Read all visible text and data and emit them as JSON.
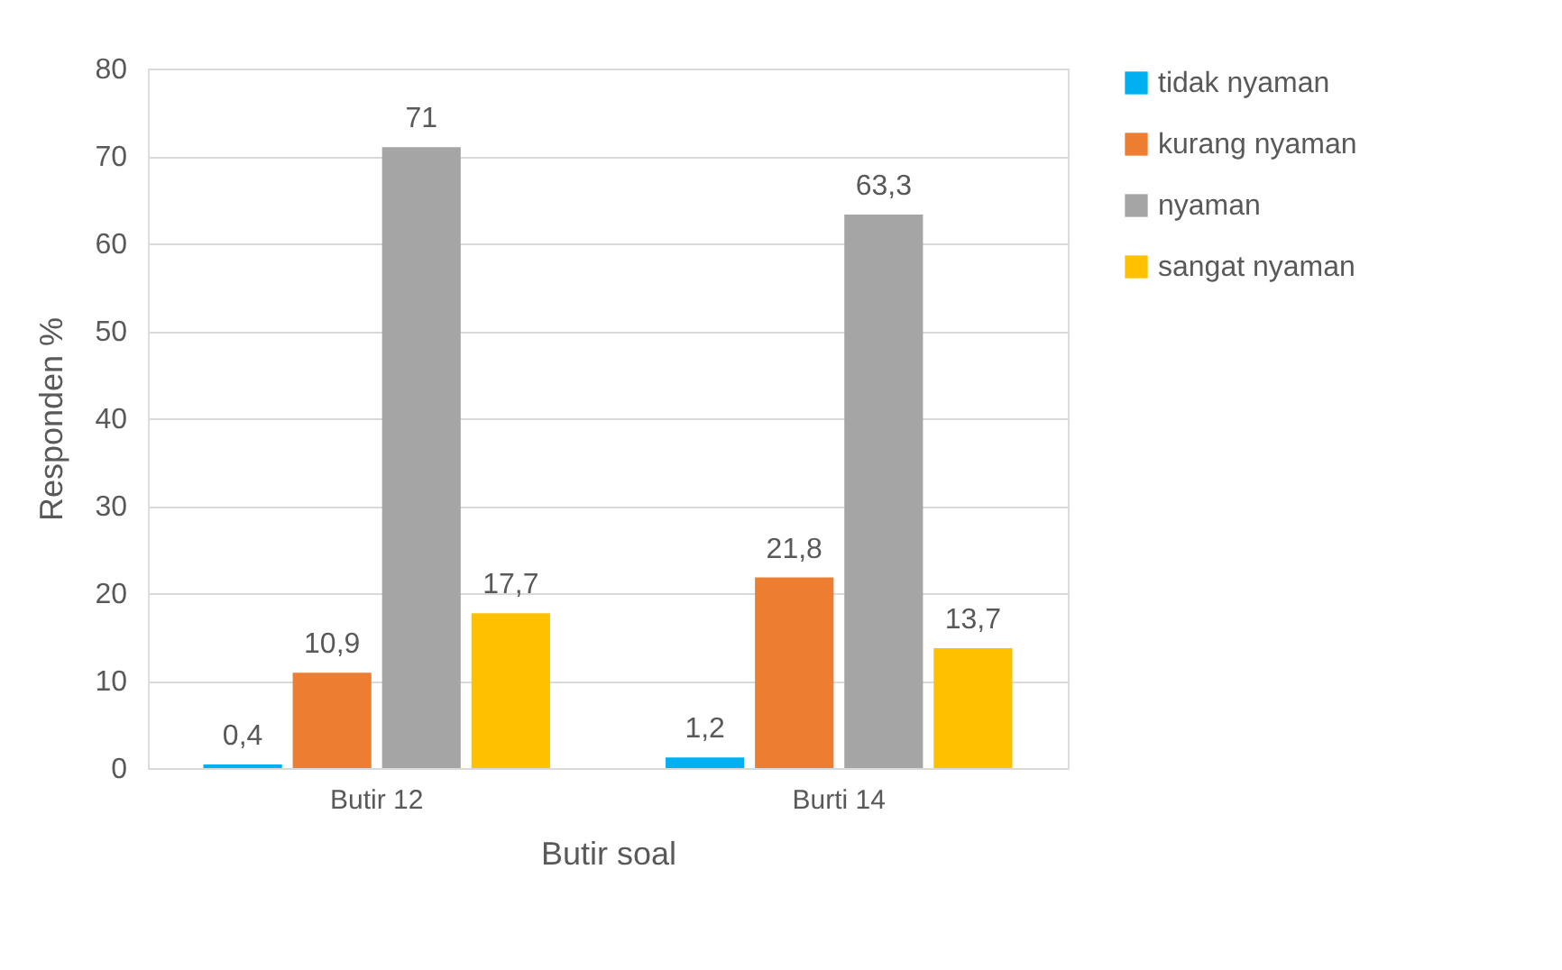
{
  "chart_data": {
    "type": "bar",
    "xlabel": "Butir soal",
    "ylabel": "Responden %",
    "categories": [
      "Butir 12",
      "Burti 14"
    ],
    "series": [
      {
        "name": "tidak nyaman",
        "color": "#00b0f0",
        "values": [
          0.4,
          1.2
        ],
        "value_labels": [
          "0,4",
          "1,2"
        ]
      },
      {
        "name": "kurang nyaman",
        "color": "#ed7d31",
        "values": [
          10.9,
          21.8
        ],
        "value_labels": [
          "10,9",
          "21,8"
        ]
      },
      {
        "name": "nyaman",
        "color": "#a5a5a5",
        "values": [
          71,
          63.3
        ],
        "value_labels": [
          "71",
          "63,3"
        ]
      },
      {
        "name": "sangat nyaman",
        "color": "#ffc000",
        "values": [
          17.7,
          13.7
        ],
        "value_labels": [
          "17,7",
          "13,7"
        ]
      }
    ],
    "ylim": [
      0,
      80
    ],
    "yticks": [
      0,
      10,
      20,
      30,
      40,
      50,
      60,
      70,
      80
    ],
    "grid": "y",
    "legend": "right"
  }
}
